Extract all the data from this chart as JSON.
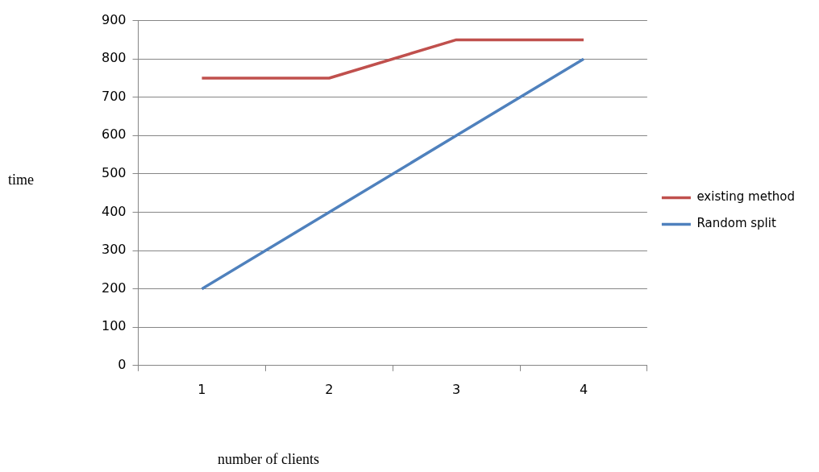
{
  "chart_data": {
    "type": "line",
    "xlabel": "number of clients",
    "ylabel": "time",
    "categories": [
      "1",
      "2",
      "3",
      "4"
    ],
    "series": [
      {
        "name": "existing method",
        "color": "#c0504d",
        "values": [
          750,
          750,
          850,
          850
        ]
      },
      {
        "name": "Random split",
        "color": "#4f81bd",
        "values": [
          200,
          400,
          600,
          800
        ]
      }
    ],
    "ylim": [
      0,
      900
    ],
    "yticks": [
      0,
      100,
      200,
      300,
      400,
      500,
      600,
      700,
      800,
      900
    ],
    "grid": "y",
    "legend": "right",
    "marker": "none",
    "line_style": "solid"
  }
}
